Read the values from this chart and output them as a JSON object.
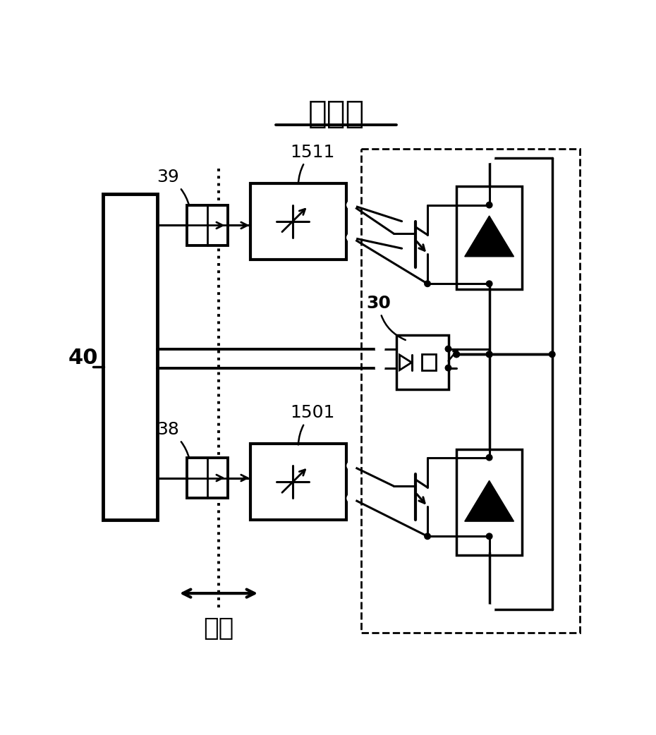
{
  "title": "比较例",
  "bg_color": "#ffffff",
  "label_40": "40",
  "label_39": "39",
  "label_38": "38",
  "label_1511": "1511",
  "label_1501": "1501",
  "label_30": "30",
  "label_jyuan": "绝缘",
  "figsize": [
    9.3,
    10.42
  ],
  "dpi": 100,
  "title_fontsize": 32,
  "label_fontsize": 18,
  "ref_fontsize": 22
}
